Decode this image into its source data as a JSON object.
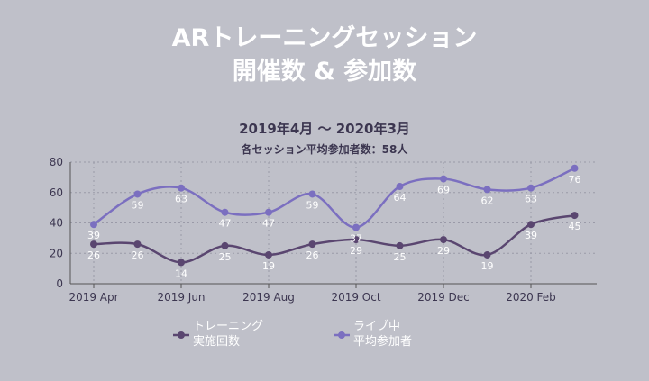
{
  "title_line1": "ARトレーニングセッション",
  "title_line2": "開催数 & 参加数",
  "subtitle_line1": "2019年4月 〜 2020年3月",
  "subtitle_line2": "各セッション平均参加者数：58人",
  "chart_data": {
    "type": "line",
    "x": [
      "2019-04",
      "2019-05",
      "2019-06",
      "2019-07",
      "2019-08",
      "2019-09",
      "2019-10",
      "2019-11",
      "2019-12",
      "2020-01",
      "2020-02",
      "2020-03"
    ],
    "xtick_labels": [
      "2019 Apr",
      "2019 Jun",
      "2019 Aug",
      "2019 Oct",
      "2019 Dec",
      "2020 Feb"
    ],
    "ylim": [
      0,
      80
    ],
    "yticks": [
      0,
      20,
      40,
      60,
      80
    ],
    "grid": true,
    "legend_position": "bottom",
    "series": [
      {
        "name_line1": "トレーニング",
        "name_line2": "実施回数",
        "color": "#5a4670",
        "values": [
          26,
          26,
          14,
          25,
          19,
          26,
          29,
          25,
          29,
          19,
          39,
          45
        ]
      },
      {
        "name_line1": "ライブ中",
        "name_line2": "平均参加者",
        "color": "#7b6fc0",
        "values": [
          39,
          59,
          63,
          47,
          47,
          59,
          37,
          64,
          69,
          62,
          63,
          76
        ]
      }
    ]
  }
}
